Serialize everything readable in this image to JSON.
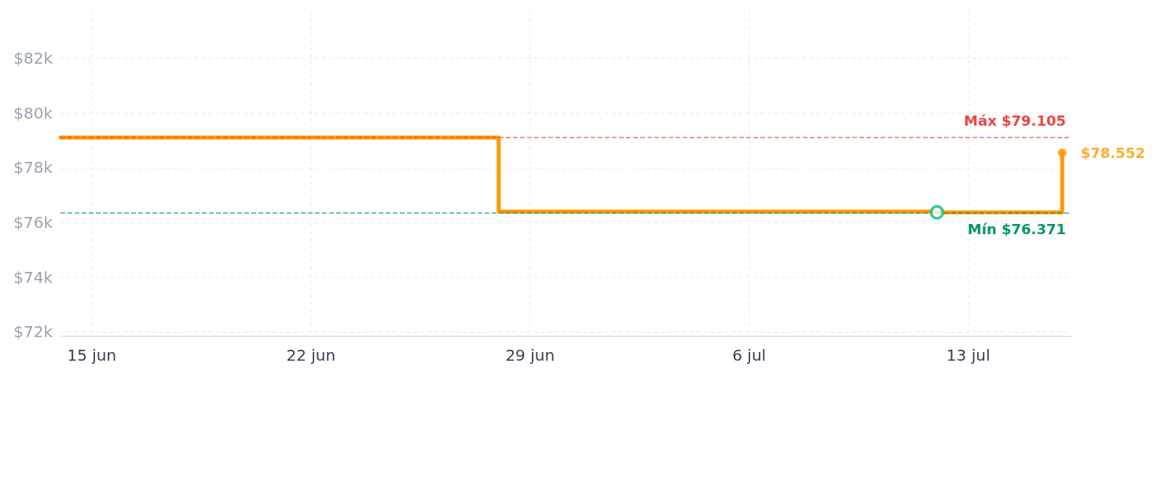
{
  "chart_data": {
    "type": "step",
    "xlim": [
      "--06-14",
      "--07-16T06:30"
    ],
    "xticks": [
      {
        "value": "--06-15",
        "label": "15 jun"
      },
      {
        "value": "--06-22",
        "label": "22 jun"
      },
      {
        "value": "--06-29",
        "label": "29 jun"
      },
      {
        "value": "--07-06",
        "label": "6 jul"
      },
      {
        "value": "--07-13",
        "label": "13 jul"
      }
    ],
    "ylim": [
      71.84,
      83.7
    ],
    "yticks": [
      {
        "value": 72,
        "label": "$72k"
      },
      {
        "value": 74,
        "label": "$74k"
      },
      {
        "value": 76,
        "label": "$76k"
      },
      {
        "value": 78,
        "label": "$78k"
      },
      {
        "value": 80,
        "label": "$80k"
      },
      {
        "value": 82,
        "label": "$82k"
      }
    ],
    "grid": true,
    "series": [
      {
        "color": "#ff9900",
        "x": [
          "--06-14",
          "--06-28",
          "--07-12",
          "--07-16"
        ],
        "values": [
          79.105,
          76.4,
          76.371,
          78.552
        ],
        "marker": "none",
        "line_style": "solid"
      },
      {
        "type": "scatter",
        "color": "#10b981",
        "x": [
          "--07-12"
        ],
        "values": [
          76.371
        ],
        "marker": "circle"
      },
      {
        "type": "scatter",
        "color": "#ff9900",
        "x": [
          "--07-16"
        ],
        "values": [
          78.552
        ],
        "marker": "circle",
        "value_labels": [
          "$78.552"
        ]
      }
    ],
    "ref_lines": [
      {
        "axis": "y",
        "value": 79.105,
        "label": "Máx $79.105",
        "color": "#ef4444",
        "line_style": "dashed"
      },
      {
        "axis": "y",
        "value": 76.371,
        "label": "Mín $76.371",
        "color": "#059669",
        "line_style": "dashed"
      }
    ]
  }
}
